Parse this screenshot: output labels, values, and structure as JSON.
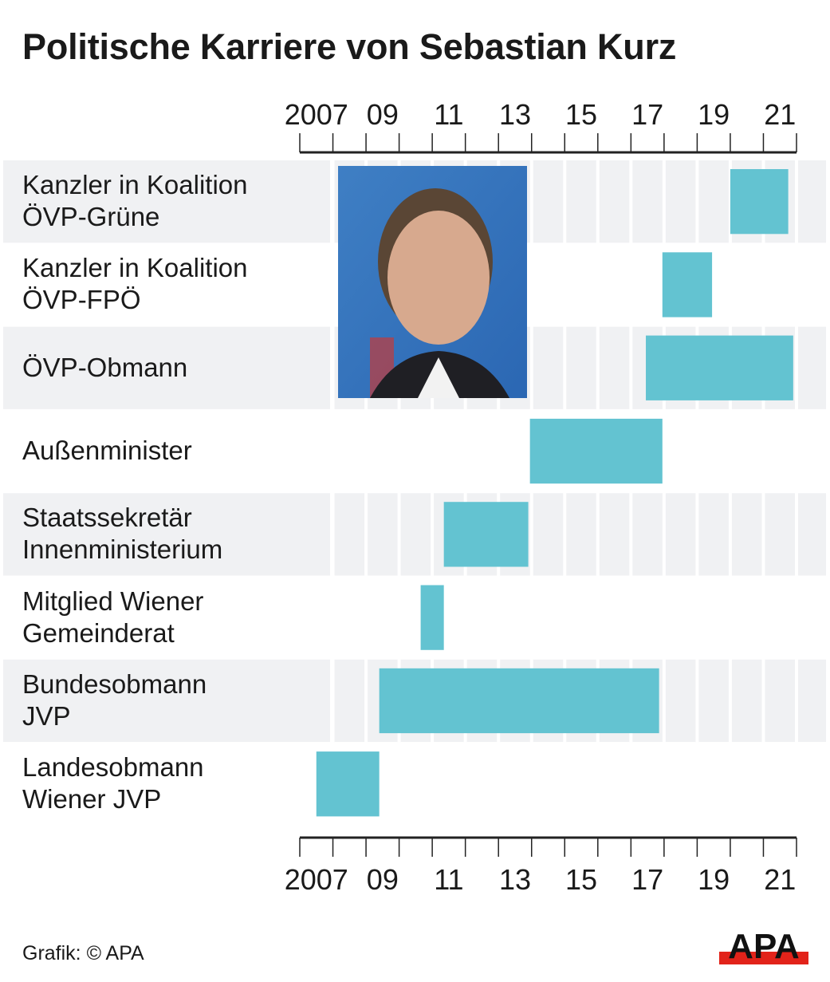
{
  "chart_data": {
    "type": "gantt",
    "title": "Politische Karriere von Sebastian Kurz",
    "xlabel": "",
    "ylabel": "",
    "x_range": [
      2007,
      2022
    ],
    "x_ticks": [
      2007,
      2008,
      2009,
      2010,
      2011,
      2012,
      2013,
      2014,
      2015,
      2016,
      2017,
      2018,
      2019,
      2020,
      2021,
      2022
    ],
    "x_tick_labels": [
      {
        "year": 2007,
        "label": "2007"
      },
      {
        "year": 2009,
        "label": "09"
      },
      {
        "year": 2011,
        "label": "11"
      },
      {
        "year": 2013,
        "label": "13"
      },
      {
        "year": 2015,
        "label": "15"
      },
      {
        "year": 2017,
        "label": "17"
      },
      {
        "year": 2019,
        "label": "19"
      },
      {
        "year": 2021,
        "label": "21"
      }
    ],
    "axis_position": "top-and-bottom",
    "grid": true,
    "bar_color": "#63C3D1",
    "stripe_color": "#F0F1F3",
    "rows": [
      {
        "label_lines": [
          "Kanzler in Koalition",
          "ÖVP-Grüne"
        ],
        "start": 2020.0,
        "end": 2021.75
      },
      {
        "label_lines": [
          "Kanzler in Koalition",
          "ÖVP-FPÖ"
        ],
        "start": 2017.95,
        "end": 2019.45
      },
      {
        "label_lines": [
          "ÖVP-Obmann"
        ],
        "start": 2017.45,
        "end": 2021.9
      },
      {
        "label_lines": [
          "Außenminister"
        ],
        "start": 2013.95,
        "end": 2017.95
      },
      {
        "label_lines": [
          "Staatssekretär",
          "Innenministerium"
        ],
        "start": 2011.35,
        "end": 2013.9
      },
      {
        "label_lines": [
          "Mitglied Wiener",
          "Gemeinderat"
        ],
        "start": 2010.65,
        "end": 2011.35
      },
      {
        "label_lines": [
          "Bundesobmann",
          "JVP"
        ],
        "start": 2009.4,
        "end": 2017.85
      },
      {
        "label_lines": [
          "Landesobmann",
          "Wiener JVP"
        ],
        "start": 2007.5,
        "end": 2009.4
      }
    ]
  },
  "photo": {
    "alt": "Portraitfoto"
  },
  "footer": {
    "credit": "Grafik: © APA",
    "logo_text": "APA",
    "logo_colors": {
      "text": "#111111",
      "bar": "#E2231A"
    }
  }
}
